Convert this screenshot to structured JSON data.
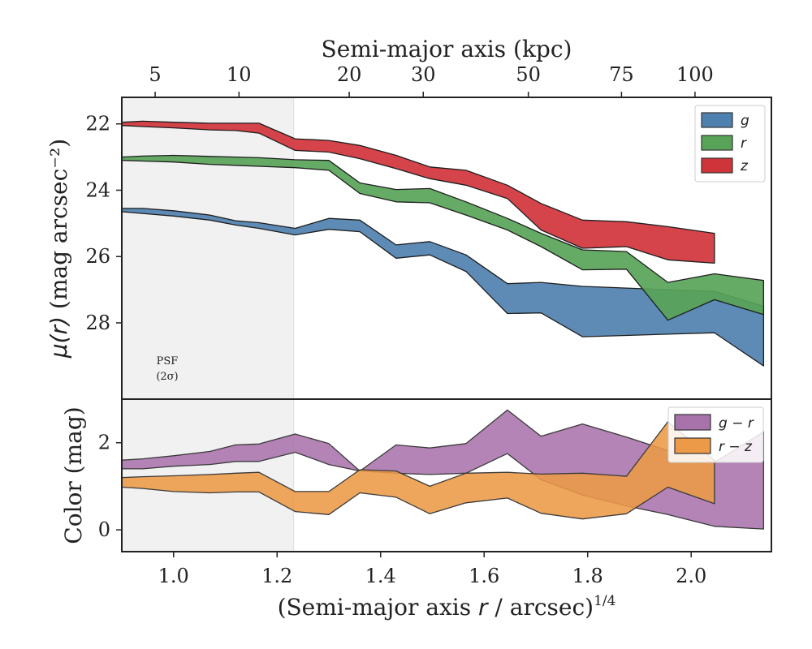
{
  "chart_data": [
    {
      "type": "area",
      "title": "",
      "ylabel": "μ(r) (mag arcsec⁻²)",
      "top_xlabel": "Semi-major axis (kpc)",
      "top_xticks": [
        {
          "label": "5",
          "x": 0.9644
        },
        {
          "label": "10",
          "x": 1.1264
        },
        {
          "label": "20",
          "x": 1.3394
        },
        {
          "label": "30",
          "x": 1.4824
        },
        {
          "label": "50",
          "x": 1.6854
        },
        {
          "label": "75",
          "x": 1.8654
        },
        {
          "label": "100",
          "x": 2.0074
        }
      ],
      "xlim": [
        0.9,
        2.155
      ],
      "ylim": [
        30.3,
        21.2
      ],
      "y_inverted": true,
      "yticks": [
        22,
        24,
        26,
        28
      ],
      "shaded_region": {
        "x": [
          0.9,
          1.232
        ]
      },
      "psf_label": [
        "PSF",
        "(2σ)"
      ],
      "legend_position": "top-right",
      "series": [
        {
          "name": "g",
          "color": "#4f81b0",
          "x": [
            0.9,
            0.94,
            1.0,
            1.07,
            1.12,
            1.165,
            1.235,
            1.3,
            1.36,
            1.43,
            1.495,
            1.565,
            1.645,
            1.71,
            1.79,
            1.875,
            1.955,
            2.045,
            2.14
          ],
          "lower": [
            24.55,
            24.55,
            24.62,
            24.75,
            24.92,
            24.98,
            25.15,
            24.85,
            24.9,
            25.65,
            25.55,
            25.95,
            26.82,
            26.78,
            26.9,
            26.95,
            27.0,
            27.05,
            27.5
          ],
          "upper": [
            24.65,
            24.7,
            24.78,
            24.9,
            25.05,
            25.15,
            25.35,
            25.18,
            25.25,
            26.05,
            25.95,
            26.45,
            27.72,
            27.7,
            28.42,
            28.38,
            28.34,
            28.3,
            29.3
          ]
        },
        {
          "name": "r",
          "color": "#58a358",
          "x": [
            0.9,
            0.94,
            1.0,
            1.07,
            1.12,
            1.165,
            1.235,
            1.3,
            1.36,
            1.43,
            1.495,
            1.565,
            1.645,
            1.71,
            1.79,
            1.875,
            1.955,
            2.045,
            2.14
          ],
          "lower": [
            23.0,
            22.97,
            22.95,
            22.98,
            23.0,
            23.02,
            23.08,
            23.1,
            23.78,
            23.98,
            23.95,
            24.35,
            24.85,
            25.3,
            25.8,
            25.85,
            26.78,
            26.52,
            26.72
          ],
          "upper": [
            23.1,
            23.12,
            23.15,
            23.22,
            23.25,
            23.28,
            23.32,
            23.4,
            24.1,
            24.35,
            24.38,
            24.75,
            25.2,
            25.7,
            26.4,
            26.38,
            27.92,
            27.3,
            27.75
          ]
        },
        {
          "name": "z",
          "color": "#d0343b",
          "x": [
            0.9,
            0.94,
            1.0,
            1.07,
            1.12,
            1.165,
            1.235,
            1.3,
            1.36,
            1.43,
            1.495,
            1.565,
            1.645,
            1.71,
            1.79,
            1.875,
            1.955,
            2.045
          ],
          "lower": [
            21.95,
            21.92,
            21.95,
            21.98,
            21.98,
            21.98,
            22.45,
            22.5,
            22.65,
            22.95,
            23.3,
            23.4,
            23.85,
            24.4,
            24.9,
            24.95,
            25.1,
            25.3
          ],
          "upper": [
            22.05,
            22.08,
            22.12,
            22.18,
            22.2,
            22.28,
            22.8,
            22.85,
            23.05,
            23.35,
            23.65,
            23.85,
            24.25,
            25.2,
            25.75,
            25.7,
            26.1,
            26.2
          ]
        }
      ]
    },
    {
      "type": "area",
      "title": "",
      "xlabel": "(Semi-major axis r / arcsec)^1/4",
      "ylabel": "Color (mag)",
      "xlim": [
        0.9,
        2.155
      ],
      "ylim": [
        -0.5,
        3.0
      ],
      "xticks": [
        1.0,
        1.2,
        1.4,
        1.6,
        1.8,
        2.0
      ],
      "xtick_labels": [
        "1.0",
        "1.2",
        "1.4",
        "1.6",
        "1.8",
        "2.0"
      ],
      "yticks": [
        0,
        2
      ],
      "shaded_region": {
        "x": [
          0.9,
          1.232
        ]
      },
      "legend_position": "top-right",
      "series": [
        {
          "name": "g − r",
          "color": "#a873ab",
          "x": [
            0.9,
            0.94,
            1.0,
            1.07,
            1.12,
            1.165,
            1.235,
            1.3,
            1.36,
            1.43,
            1.495,
            1.565,
            1.645,
            1.71,
            1.79,
            1.875,
            1.955,
            2.045,
            2.14
          ],
          "lower": [
            1.4,
            1.4,
            1.46,
            1.5,
            1.57,
            1.57,
            1.78,
            1.5,
            1.35,
            1.3,
            1.27,
            1.3,
            1.75,
            1.15,
            0.8,
            0.55,
            0.35,
            0.08,
            0.02
          ],
          "upper": [
            1.6,
            1.63,
            1.7,
            1.8,
            1.95,
            1.97,
            2.2,
            1.98,
            1.35,
            1.95,
            1.88,
            1.98,
            2.75,
            2.15,
            2.43,
            2.13,
            1.82,
            1.55,
            2.25
          ]
        },
        {
          "name": "r − z",
          "color": "#ec9a47",
          "x": [
            0.9,
            0.94,
            1.0,
            1.07,
            1.12,
            1.165,
            1.235,
            1.3,
            1.36,
            1.43,
            1.495,
            1.565,
            1.645,
            1.71,
            1.79,
            1.875,
            1.955,
            2.045
          ],
          "lower": [
            0.98,
            0.95,
            0.88,
            0.85,
            0.87,
            0.87,
            0.42,
            0.35,
            0.85,
            0.75,
            0.37,
            0.62,
            0.73,
            0.38,
            0.25,
            0.37,
            0.98,
            0.6
          ],
          "upper": [
            1.2,
            1.22,
            1.24,
            1.27,
            1.3,
            1.32,
            0.88,
            0.88,
            1.38,
            1.35,
            1.0,
            1.3,
            1.32,
            1.28,
            1.3,
            1.23,
            2.48,
            1.6
          ]
        }
      ]
    }
  ]
}
